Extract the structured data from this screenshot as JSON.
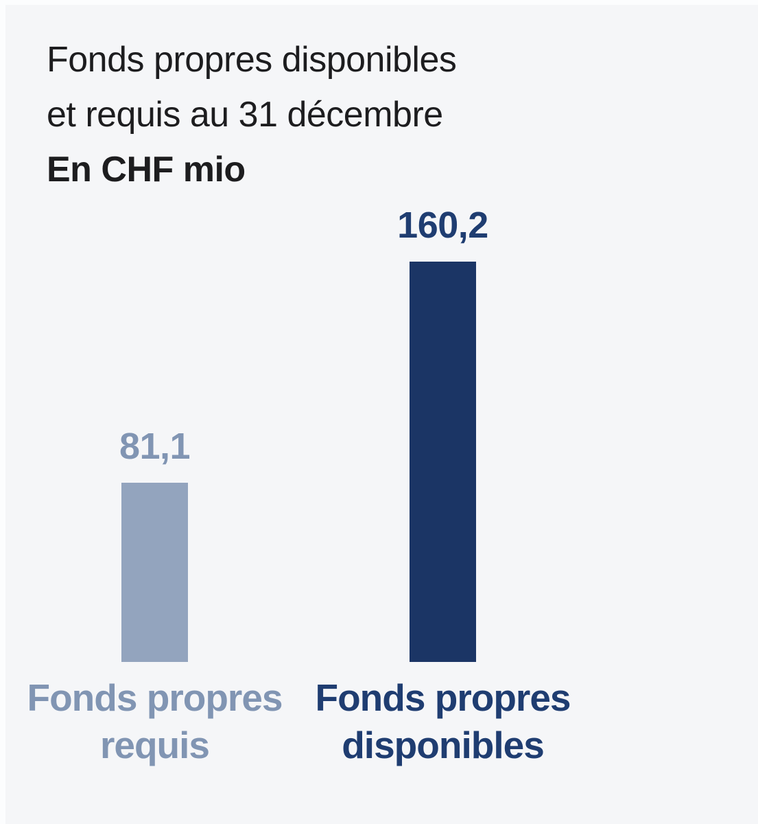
{
  "page": {
    "background": "#f5f6f8",
    "edge_strip_color": "#fcfdfe"
  },
  "chart_data": {
    "type": "bar",
    "title": "Fonds propres disponibles et requis au 31 décembre",
    "title_lines": [
      "Fonds propres disponibles",
      "et requis au 31 décembre"
    ],
    "unit_label": "En CHF mio",
    "categories": [
      "Fonds propres requis",
      "Fonds propres disponibles"
    ],
    "values": [
      81.1,
      160.2
    ],
    "xlabel": "",
    "ylabel": "",
    "grid": false,
    "axes_visible": false,
    "legend": false,
    "decimal_separator": ",",
    "bars": [
      {
        "category_lines": [
          "Fonds propres",
          "requis"
        ],
        "value": 81.1,
        "value_label": "81,1",
        "bar_color": "#93a4be",
        "text_color": "#8195b3"
      },
      {
        "category_lines": [
          "Fonds propres",
          "disponibles"
        ],
        "value": 160.2,
        "value_label": "160,2",
        "bar_color": "#1b3565",
        "text_color": "#1f3d71"
      }
    ]
  }
}
